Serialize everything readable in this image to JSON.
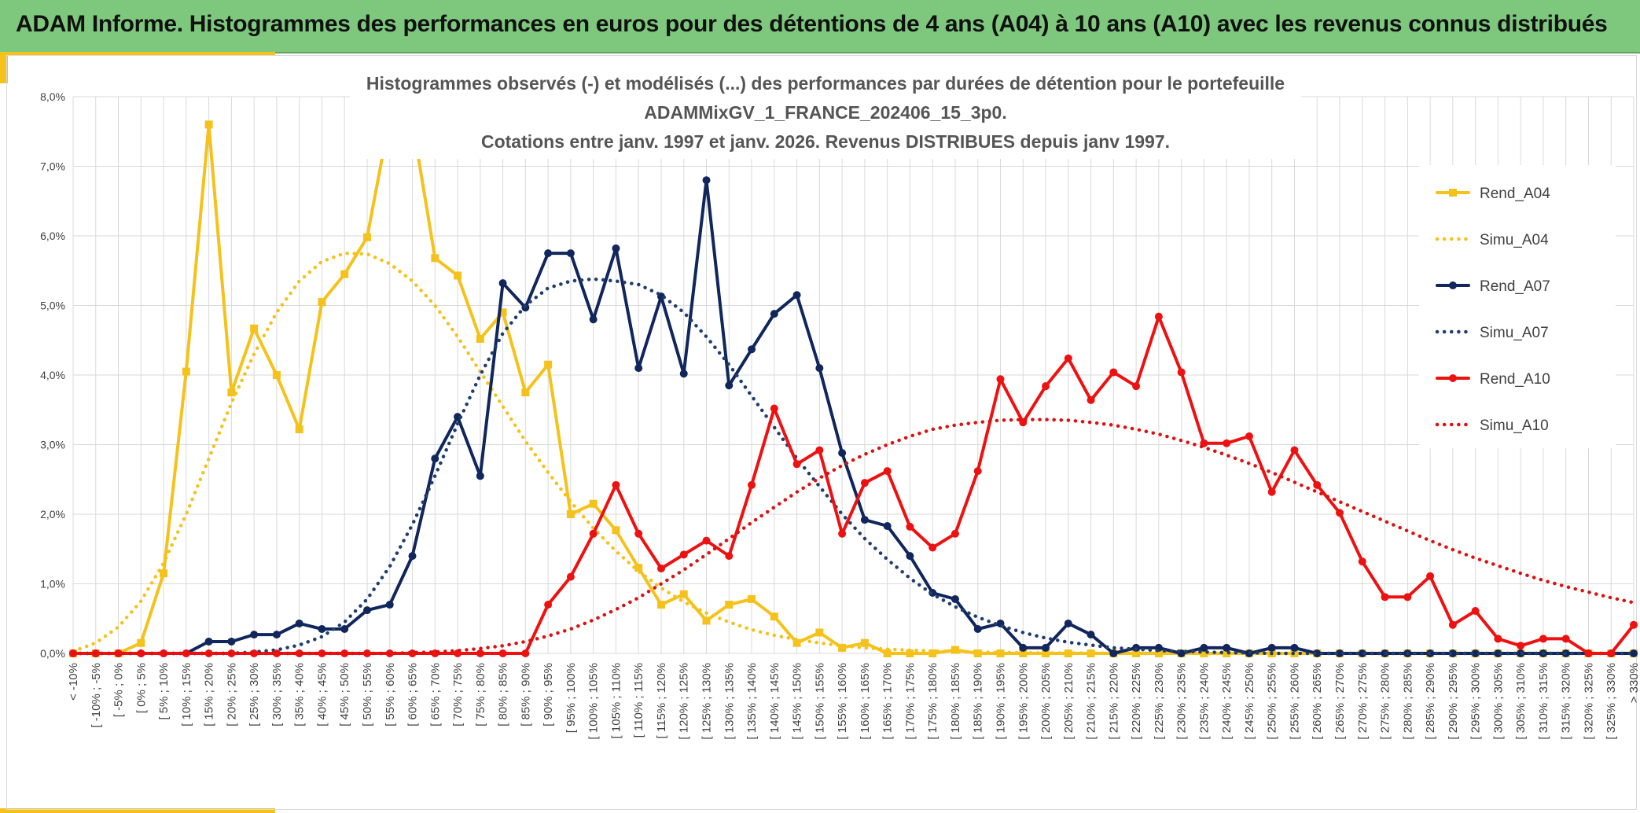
{
  "header": {
    "title": "ADAM Informe. Histogrammes des performances en euros pour des détentions de 4 ans (A04) à 10 ans (A10) avec les revenus connus distribués"
  },
  "chart_data": {
    "type": "line",
    "title": [
      "Histogrammes observés (-) et modélisés (...) des performances par durées de détention pour le portefeuille",
      "ADAMMixGV_1_FRANCE_202406_15_3p0.",
      "Cotations entre janv. 1997 et janv. 2026. Revenus DISTRIBUES depuis janv 1997."
    ],
    "xlabel": "",
    "ylabel": "",
    "ylim": [
      0,
      8
    ],
    "yticks": [
      "0,0%",
      "1,0%",
      "2,0%",
      "3,0%",
      "4,0%",
      "5,0%",
      "6,0%",
      "7,0%",
      "8,0%"
    ],
    "grid": true,
    "legend_position": "right",
    "categories": [
      "< -10%",
      "[ -10% ; -5%",
      "[ -5% ; 0%",
      "[ 0% ; 5%",
      "[ 5% ; 10%",
      "[ 10% ; 15%",
      "[ 15% ; 20%",
      "[ 20% ; 25%",
      "[ 25% ; 30%",
      "[ 30% ; 35%",
      "[ 35% ; 40%",
      "[ 40% ; 45%",
      "[ 45% ; 50%",
      "[ 50% ; 55%",
      "[ 55% ; 60%",
      "[ 60% ; 65%",
      "[ 65% ; 70%",
      "[ 70% ; 75%",
      "[ 75% ; 80%",
      "[ 80% ; 85%",
      "[ 85% ; 90%",
      "[ 90% ; 95%",
      "[ 95% ; 100%",
      "[ 100% ; 105%",
      "[ 105% ; 110%",
      "[ 110% ; 115%",
      "[ 115% ; 120%",
      "[ 120% ; 125%",
      "[ 125% ; 130%",
      "[ 130% ; 135%",
      "[ 135% ; 140%",
      "[ 140% ; 145%",
      "[ 145% ; 150%",
      "[ 150% ; 155%",
      "[ 155% ; 160%",
      "[ 160% ; 165%",
      "[ 165% ; 170%",
      "[ 170% ; 175%",
      "[ 175% ; 180%",
      "[ 180% ; 185%",
      "[ 185% ; 190%",
      "[ 190% ; 195%",
      "[ 195% ; 200%",
      "[ 200% ; 205%",
      "[ 205% ; 210%",
      "[ 210% ; 215%",
      "[ 215% ; 220%",
      "[ 220% ; 225%",
      "[ 225% ; 230%",
      "[ 230% ; 235%",
      "[ 235% ; 240%",
      "[ 240% ; 245%",
      "[ 245% ; 250%",
      "[ 250% ; 255%",
      "[ 255% ; 260%",
      "[ 260% ; 265%",
      "[ 265% ; 270%",
      "[ 270% ; 275%",
      "[ 275% ; 280%",
      "[ 280% ; 285%",
      "[ 285% ; 290%",
      "[ 290% ; 295%",
      "[ 295% ; 300%",
      "[ 300% ; 305%",
      "[ 305% ; 310%",
      "[ 310% ; 315%",
      "[ 315% ; 320%",
      "[ 320% ; 325%",
      "[ 325% ; 330%",
      "> 330%"
    ],
    "series": [
      {
        "name": "Rend_A04",
        "style": "solid",
        "marker": "square",
        "color": "#f5c21b",
        "values": [
          0,
          0,
          0,
          0.15,
          1.15,
          4.05,
          7.6,
          3.75,
          4.67,
          4.0,
          3.22,
          5.05,
          5.45,
          5.98,
          7.7,
          7.65,
          5.68,
          5.43,
          4.52,
          4.9,
          3.75,
          4.15,
          2.0,
          2.15,
          1.77,
          1.23,
          0.7,
          0.85,
          0.47,
          0.7,
          0.78,
          0.53,
          0.15,
          0.3,
          0.08,
          0.15,
          0,
          0,
          0,
          0.05,
          0,
          0,
          0,
          0,
          0,
          0,
          0,
          0,
          0,
          0,
          0,
          0,
          0,
          0,
          0,
          0,
          0,
          0,
          0,
          0,
          0,
          0,
          0,
          0,
          0,
          0,
          0,
          0,
          0,
          0
        ]
      },
      {
        "name": "Simu_A04",
        "style": "dotted",
        "color": "#f5c21b",
        "values": [
          0.03,
          0.15,
          0.38,
          0.75,
          1.3,
          2.0,
          2.8,
          3.6,
          4.3,
          4.9,
          5.35,
          5.63,
          5.75,
          5.74,
          5.6,
          5.35,
          5.0,
          4.55,
          4.05,
          3.55,
          3.05,
          2.6,
          2.18,
          1.8,
          1.47,
          1.18,
          0.94,
          0.74,
          0.58,
          0.45,
          0.34,
          0.26,
          0.2,
          0.15,
          0.11,
          0.08,
          0.06,
          0.045,
          0.035,
          0.025,
          0.018,
          0.013,
          0.009,
          0.006,
          0.004,
          0.003,
          0.002,
          0.001,
          0.001,
          0,
          0,
          0,
          0,
          0,
          0,
          0,
          0,
          0,
          0,
          0,
          0,
          0,
          0,
          0,
          0,
          0,
          0,
          0,
          0,
          0
        ]
      },
      {
        "name": "Rend_A07",
        "style": "solid",
        "marker": "circle",
        "color": "#10265c",
        "values": [
          0,
          0,
          0,
          0,
          0,
          0,
          0.17,
          0.17,
          0.27,
          0.27,
          0.43,
          0.35,
          0.35,
          0.62,
          0.7,
          1.4,
          2.8,
          3.4,
          2.55,
          5.32,
          4.97,
          5.75,
          5.75,
          4.8,
          5.82,
          4.1,
          5.13,
          4.02,
          6.8,
          3.85,
          4.37,
          4.88,
          5.15,
          4.1,
          2.88,
          1.92,
          1.83,
          1.4,
          0.87,
          0.78,
          0.35,
          0.43,
          0.08,
          0.08,
          0.43,
          0.27,
          0,
          0.08,
          0.08,
          0,
          0.08,
          0.08,
          0,
          0.08,
          0.08,
          0,
          0,
          0,
          0,
          0,
          0,
          0,
          0,
          0,
          0,
          0,
          0,
          0,
          0,
          0
        ]
      },
      {
        "name": "Simu_A07",
        "style": "dotted",
        "color": "#1f3d6d",
        "values": [
          0,
          0,
          0,
          0,
          0,
          0,
          0,
          0,
          0.02,
          0.05,
          0.12,
          0.24,
          0.45,
          0.78,
          1.25,
          1.85,
          2.55,
          3.3,
          4.0,
          4.6,
          5.0,
          5.25,
          5.35,
          5.38,
          5.35,
          5.3,
          5.15,
          4.9,
          4.55,
          4.15,
          3.7,
          3.25,
          2.8,
          2.4,
          2.0,
          1.65,
          1.35,
          1.08,
          0.85,
          0.67,
          0.52,
          0.4,
          0.3,
          0.22,
          0.16,
          0.12,
          0.08,
          0.06,
          0.04,
          0.03,
          0.02,
          0.01,
          0.01,
          0,
          0,
          0,
          0,
          0,
          0,
          0,
          0,
          0,
          0,
          0,
          0,
          0,
          0,
          0,
          0,
          0
        ]
      },
      {
        "name": "Rend_A10",
        "style": "solid",
        "marker": "circle",
        "color": "#ee1111",
        "values": [
          0,
          0,
          0,
          0,
          0,
          0,
          0,
          0,
          0,
          0,
          0,
          0,
          0,
          0,
          0,
          0,
          0,
          0,
          0,
          0,
          0,
          0.7,
          1.1,
          1.72,
          2.42,
          1.72,
          1.22,
          1.42,
          1.62,
          1.4,
          2.42,
          3.52,
          2.72,
          2.92,
          1.72,
          2.45,
          2.62,
          1.82,
          1.52,
          1.72,
          2.62,
          3.94,
          3.32,
          3.84,
          4.24,
          3.64,
          4.04,
          3.84,
          4.84,
          4.04,
          3.02,
          3.02,
          3.12,
          2.32,
          2.92,
          2.42,
          2.02,
          1.32,
          0.81,
          0.81,
          1.11,
          0.41,
          0.61,
          0.21,
          0.11,
          0.21,
          0.21,
          0,
          0,
          0.41
        ]
      },
      {
        "name": "Simu_A10",
        "style": "dotted",
        "color": "#dd1111",
        "values": [
          0,
          0,
          0,
          0,
          0,
          0,
          0,
          0,
          0,
          0,
          0,
          0,
          0,
          0,
          0,
          0.01,
          0.02,
          0.04,
          0.07,
          0.11,
          0.17,
          0.25,
          0.35,
          0.48,
          0.63,
          0.8,
          1.0,
          1.2,
          1.42,
          1.65,
          1.88,
          2.1,
          2.32,
          2.52,
          2.7,
          2.86,
          3.0,
          3.12,
          3.22,
          3.28,
          3.32,
          3.35,
          3.36,
          3.36,
          3.35,
          3.32,
          3.28,
          3.22,
          3.15,
          3.06,
          2.96,
          2.85,
          2.73,
          2.6,
          2.46,
          2.32,
          2.18,
          2.04,
          1.9,
          1.76,
          1.62,
          1.49,
          1.37,
          1.26,
          1.15,
          1.05,
          0.96,
          0.88,
          0.8,
          0.73
        ]
      }
    ]
  }
}
